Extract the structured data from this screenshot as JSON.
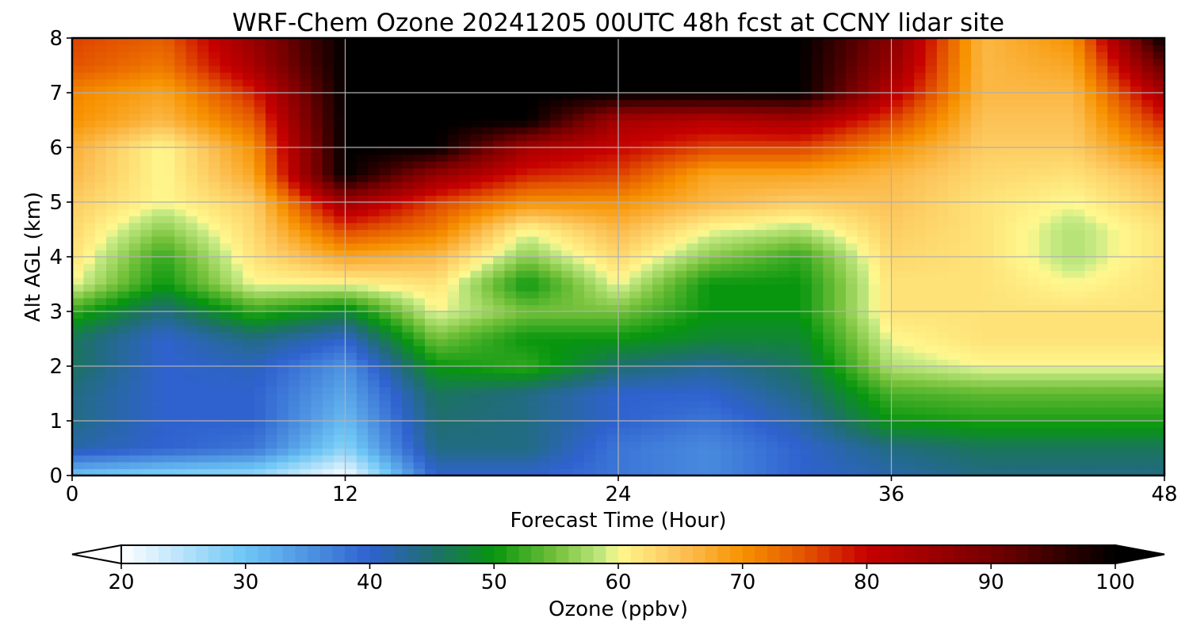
{
  "chart_data": {
    "type": "heatmap",
    "title": "WRF-Chem Ozone  20241205 00UTC 48h fcst at CCNY lidar site",
    "xlabel": "Forecast Time (Hour)",
    "ylabel": "Alt AGL (km)",
    "xlim": [
      0,
      48
    ],
    "ylim": [
      0,
      8
    ],
    "x_ticks": [
      0,
      12,
      24,
      36,
      48
    ],
    "y_ticks": [
      0,
      1,
      2,
      3,
      4,
      5,
      6,
      7,
      8
    ],
    "grid": true,
    "x_hours": [
      0,
      4,
      8,
      12,
      16,
      20,
      24,
      28,
      32,
      36,
      40,
      44,
      48
    ],
    "altitudes_km": [
      0,
      0.5,
      1,
      1.5,
      2,
      2.5,
      3,
      3.5,
      4,
      4.5,
      5,
      5.5,
      6,
      6.5,
      7,
      7.5,
      8
    ],
    "values_ppbv": [
      [
        30,
        28,
        27,
        20,
        40,
        40,
        38,
        36,
        40,
        42,
        44,
        44,
        44
      ],
      [
        42,
        40,
        38,
        28,
        44,
        44,
        38,
        36,
        40,
        44,
        46,
        46,
        46
      ],
      [
        44,
        40,
        40,
        31,
        45,
        44,
        40,
        38,
        42,
        50,
        51,
        51,
        51
      ],
      [
        44,
        40,
        40,
        33,
        46,
        44,
        40,
        40,
        44,
        53,
        54,
        54,
        54
      ],
      [
        46,
        40,
        41,
        35,
        50,
        52,
        45,
        43,
        46,
        58,
        60,
        60,
        60
      ],
      [
        46,
        40,
        44,
        40,
        55,
        50,
        50,
        48,
        48,
        60,
        62,
        62,
        62
      ],
      [
        52,
        44,
        52,
        48,
        60,
        55,
        55,
        50,
        50,
        62,
        62,
        62,
        62
      ],
      [
        60,
        50,
        60,
        60,
        62,
        50,
        60,
        50,
        50,
        62,
        62,
        60,
        62
      ],
      [
        62,
        52,
        62,
        68,
        66,
        56,
        63,
        56,
        52,
        63,
        62,
        58,
        62
      ],
      [
        63,
        56,
        63,
        76,
        72,
        60,
        66,
        60,
        58,
        64,
        62,
        58,
        62
      ],
      [
        64,
        60,
        64,
        85,
        76,
        70,
        70,
        66,
        64,
        65,
        62,
        60,
        64
      ],
      [
        66,
        60,
        68,
        100,
        86,
        78,
        76,
        68,
        68,
        66,
        63,
        62,
        66
      ],
      [
        67,
        60,
        70,
        100,
        100,
        84,
        80,
        76,
        76,
        70,
        64,
        64,
        72
      ],
      [
        70,
        66,
        74,
        100,
        100,
        100,
        84,
        82,
        84,
        76,
        65,
        65,
        78
      ],
      [
        71,
        68,
        78,
        100,
        100,
        100,
        100,
        100,
        100,
        82,
        66,
        66,
        84
      ],
      [
        75,
        72,
        84,
        100,
        100,
        100,
        100,
        100,
        100,
        86,
        66,
        68,
        92
      ],
      [
        76,
        74,
        86,
        100,
        100,
        100,
        100,
        100,
        100,
        88,
        66,
        70,
        100
      ]
    ],
    "colorbar": {
      "label": "Ozone  (ppbv)",
      "range": [
        20,
        100
      ],
      "ticks": [
        20,
        30,
        40,
        50,
        60,
        70,
        80,
        90,
        100
      ],
      "extend": "both",
      "orientation": "horizontal",
      "placement": "bottom"
    },
    "colormap_stops": [
      {
        "value": 20,
        "color": "#ffffff"
      },
      {
        "value": 30,
        "color": "#6ec6f5"
      },
      {
        "value": 40,
        "color": "#2f62cf"
      },
      {
        "value": 45,
        "color": "#1f6e70"
      },
      {
        "value": 50,
        "color": "#07960e"
      },
      {
        "value": 55,
        "color": "#74c13a"
      },
      {
        "value": 59,
        "color": "#c8eb86"
      },
      {
        "value": 60,
        "color": "#fff88e"
      },
      {
        "value": 65,
        "color": "#fcc257"
      },
      {
        "value": 70,
        "color": "#f79200"
      },
      {
        "value": 75,
        "color": "#e35300"
      },
      {
        "value": 80,
        "color": "#c70000"
      },
      {
        "value": 90,
        "color": "#760000"
      },
      {
        "value": 100,
        "color": "#000000"
      }
    ]
  }
}
